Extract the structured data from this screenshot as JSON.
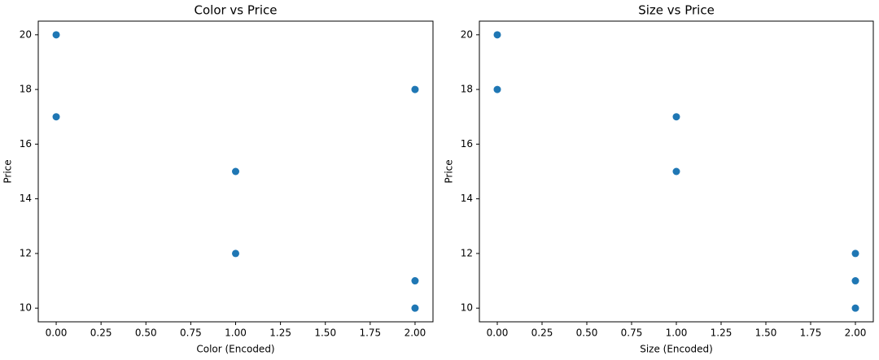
{
  "chart_data": [
    {
      "type": "scatter",
      "title": "Color vs Price",
      "xlabel": "Color (Encoded)",
      "ylabel": "Price",
      "x": [
        0,
        0,
        2,
        1,
        1,
        2,
        2
      ],
      "values": [
        20,
        17,
        18,
        15,
        12,
        11,
        10
      ],
      "color": "#1f77b4",
      "xlim": [
        -0.1,
        2.1
      ],
      "ylim": [
        9.5,
        20.5
      ],
      "xticks": [
        {
          "value": 0,
          "label": "0.00"
        },
        {
          "value": 0.25,
          "label": "0.25"
        },
        {
          "value": 0.5,
          "label": "0.50"
        },
        {
          "value": 0.75,
          "label": "0.75"
        },
        {
          "value": 1,
          "label": "1.00"
        },
        {
          "value": 1.25,
          "label": "1.25"
        },
        {
          "value": 1.5,
          "label": "1.50"
        },
        {
          "value": 1.75,
          "label": "1.75"
        },
        {
          "value": 2,
          "label": "2.00"
        }
      ],
      "yticks": [
        10,
        12,
        14,
        16,
        18,
        20
      ],
      "grid": false
    },
    {
      "type": "scatter",
      "title": "Size vs Price",
      "xlabel": "Size (Encoded)",
      "ylabel": "Price",
      "x": [
        0,
        0,
        1,
        1,
        2,
        2,
        2
      ],
      "values": [
        20,
        18,
        17,
        15,
        12,
        11,
        10
      ],
      "color": "#1f77b4",
      "xlim": [
        -0.1,
        2.1
      ],
      "ylim": [
        9.5,
        20.5
      ],
      "xticks": [
        {
          "value": 0,
          "label": "0.00"
        },
        {
          "value": 0.25,
          "label": "0.25"
        },
        {
          "value": 0.5,
          "label": "0.50"
        },
        {
          "value": 0.75,
          "label": "0.75"
        },
        {
          "value": 1,
          "label": "1.00"
        },
        {
          "value": 1.25,
          "label": "1.25"
        },
        {
          "value": 1.5,
          "label": "1.50"
        },
        {
          "value": 1.75,
          "label": "1.75"
        },
        {
          "value": 2,
          "label": "2.00"
        }
      ],
      "yticks": [
        10,
        12,
        14,
        16,
        18,
        20
      ],
      "grid": false
    }
  ]
}
